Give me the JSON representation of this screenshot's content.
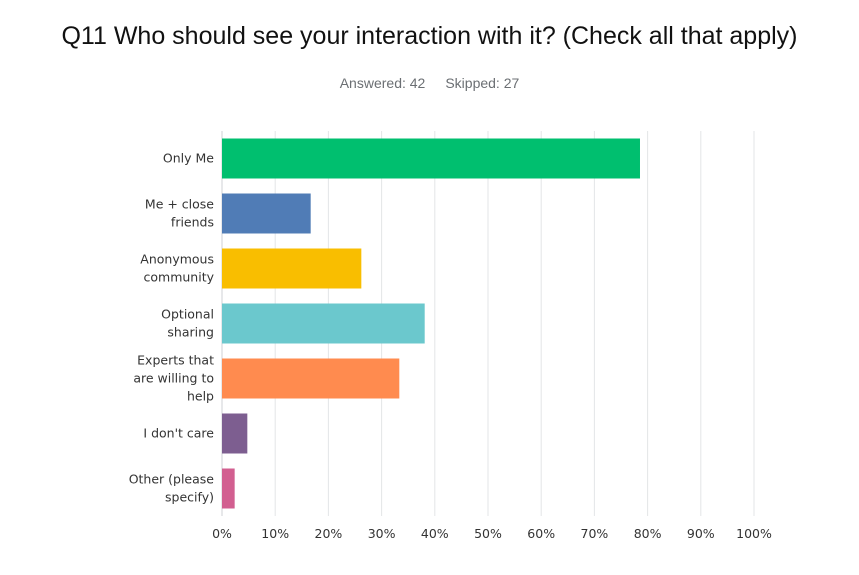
{
  "question": {
    "title": "Q11 Who should see your interaction with it? (Check all that apply)",
    "answered_label": "Answered: 42",
    "skipped_label": "Skipped: 27"
  },
  "chart_data": {
    "type": "bar",
    "orientation": "horizontal",
    "categories": [
      [
        "Only Me"
      ],
      [
        "Me + close",
        "friends"
      ],
      [
        "Anonymous",
        "community"
      ],
      [
        "Optional",
        "sharing"
      ],
      [
        "Experts that",
        "are willing to",
        "help"
      ],
      [
        "I don't care"
      ],
      [
        "Other (please",
        "specify)"
      ]
    ],
    "values": [
      78.57,
      16.67,
      26.19,
      38.1,
      33.33,
      4.76,
      2.38
    ],
    "colors": [
      "#00bf6f",
      "#507cb6",
      "#f9be00",
      "#6bc8cd",
      "#ff8b4f",
      "#7d5e90",
      "#d25f90"
    ],
    "xlim": [
      0,
      100
    ],
    "x_ticks": [
      "0%",
      "10%",
      "20%",
      "30%",
      "40%",
      "50%",
      "60%",
      "70%",
      "80%",
      "90%",
      "100%"
    ],
    "grid": true,
    "legend": "none"
  }
}
